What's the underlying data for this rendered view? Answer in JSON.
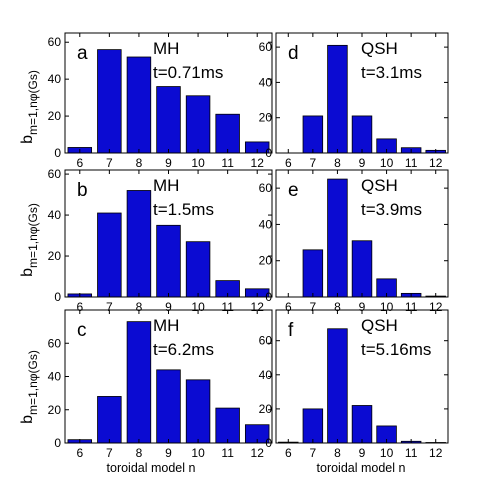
{
  "figure": {
    "ylabel_main": "b",
    "ylabel_sub": "m=1,nφ(Gs)",
    "xlabel": "toroidal model n"
  },
  "chart_data": [
    {
      "type": "bar",
      "panel": "a",
      "regime": "MH",
      "time": "t=0.71ms",
      "categories": [
        "6",
        "7",
        "8",
        "9",
        "10",
        "11",
        "12"
      ],
      "values": [
        3,
        56,
        52,
        36,
        31,
        21,
        6
      ],
      "ylim": [
        0,
        65
      ],
      "yticks": [
        0,
        20,
        40,
        60
      ],
      "bar_color": "#0b0bd2"
    },
    {
      "type": "bar",
      "panel": "d",
      "regime": "QSH",
      "time": "t=3.1ms",
      "categories": [
        "6",
        "7",
        "8",
        "9",
        "10",
        "11",
        "12"
      ],
      "values": [
        0,
        21,
        61,
        21,
        8,
        3,
        1.5
      ],
      "ylim": [
        0,
        68
      ],
      "yticks": [
        0,
        20,
        40,
        60
      ],
      "bar_color": "#0b0bd2"
    },
    {
      "type": "bar",
      "panel": "b",
      "regime": "MH",
      "time": "t=1.5ms",
      "categories": [
        "6",
        "7",
        "8",
        "9",
        "10",
        "11",
        "12"
      ],
      "values": [
        1.5,
        41,
        52,
        35,
        27,
        8,
        4
      ],
      "ylim": [
        0,
        62
      ],
      "yticks": [
        0,
        20,
        40,
        60
      ],
      "bar_color": "#0b0bd2"
    },
    {
      "type": "bar",
      "panel": "e",
      "regime": "QSH",
      "time": "t=3.9ms",
      "categories": [
        "6",
        "7",
        "8",
        "9",
        "10",
        "11",
        "12"
      ],
      "values": [
        0,
        26,
        65,
        31,
        10,
        2,
        0.5
      ],
      "ylim": [
        0,
        70
      ],
      "yticks": [
        0,
        20,
        40,
        60
      ],
      "bar_color": "#0b0bd2"
    },
    {
      "type": "bar",
      "panel": "c",
      "regime": "MH",
      "time": "t=6.2ms",
      "categories": [
        "6",
        "7",
        "8",
        "9",
        "10",
        "11",
        "12"
      ],
      "values": [
        2,
        28,
        73,
        44,
        38,
        21,
        11
      ],
      "ylim": [
        0,
        80
      ],
      "yticks": [
        0,
        20,
        40,
        60
      ],
      "bar_color": "#0b0bd2"
    },
    {
      "type": "bar",
      "panel": "f",
      "regime": "QSH",
      "time": "t=5.16ms",
      "categories": [
        "6",
        "7",
        "8",
        "9",
        "10",
        "11",
        "12"
      ],
      "values": [
        0.5,
        20,
        67,
        22,
        10,
        1,
        0.3
      ],
      "ylim": [
        0,
        78
      ],
      "yticks": [
        0,
        20,
        40,
        60
      ],
      "bar_color": "#0b0bd2"
    }
  ]
}
